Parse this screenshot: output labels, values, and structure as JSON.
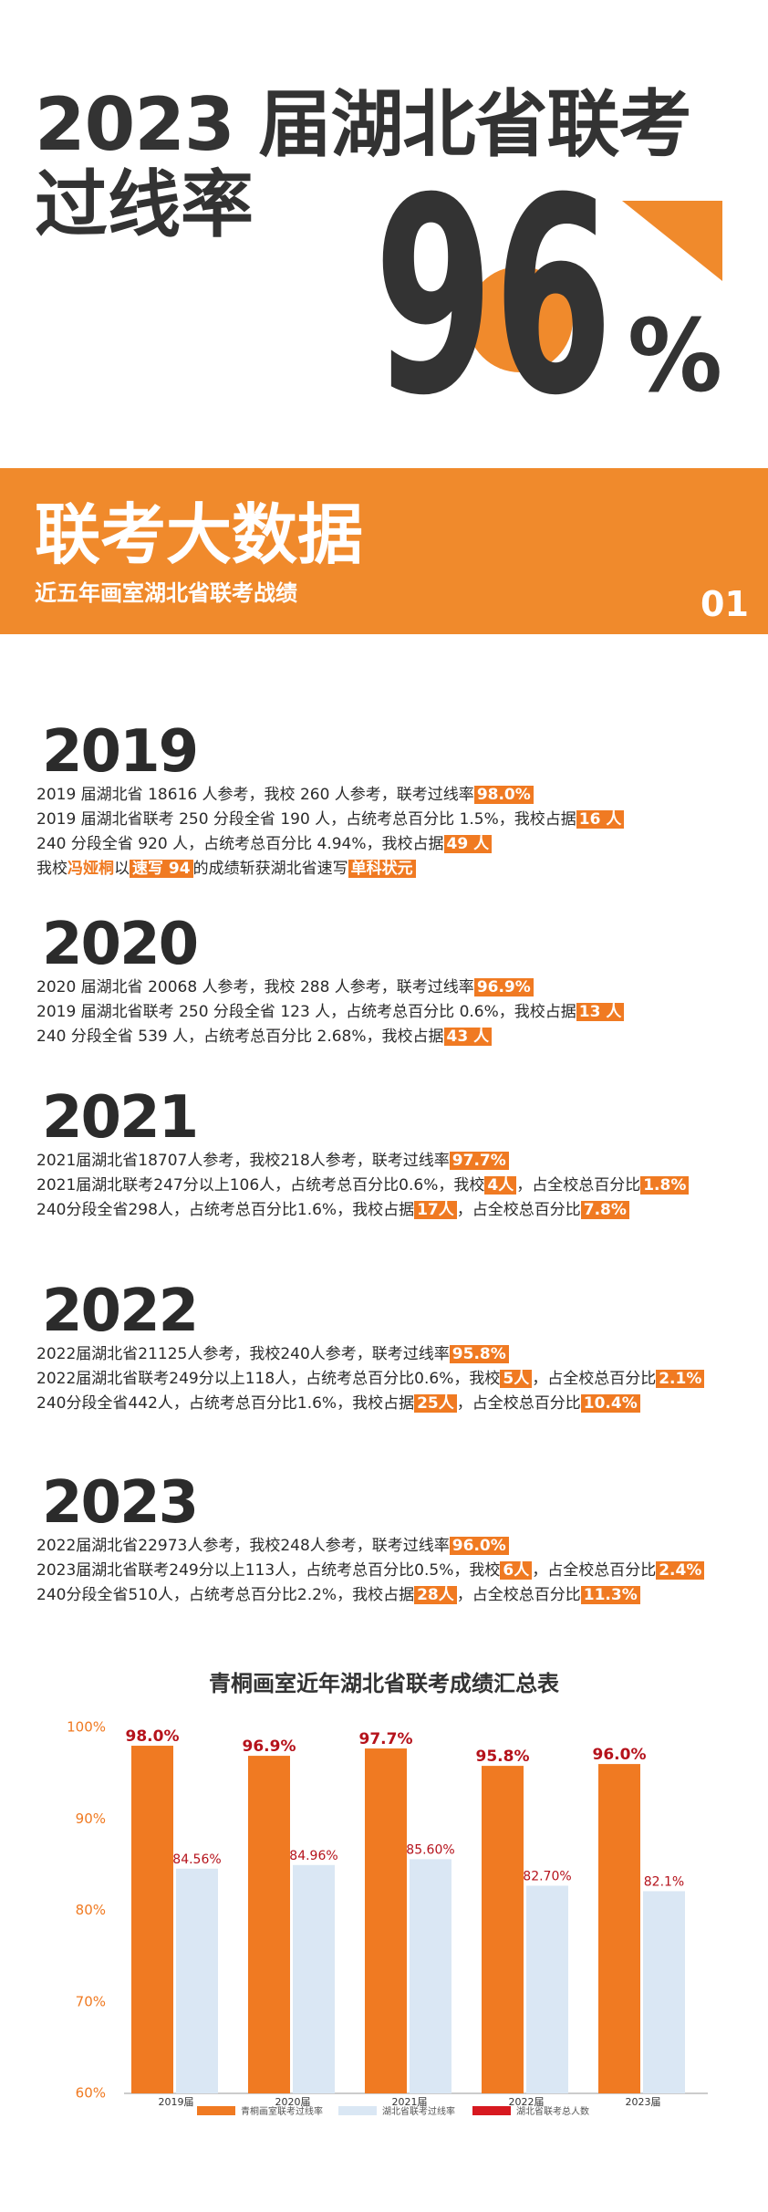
{
  "header": {
    "title": "2023 届湖北省联考",
    "subtitle": "过线率",
    "big_number": "96",
    "big_unit": "%"
  },
  "banner": {
    "title": "联考大数据",
    "subtitle": "近五年画室湖北省联考战绩",
    "number": "01"
  },
  "years": [
    {
      "year": "2019",
      "lines": [
        [
          {
            "text": "2019 届湖北省 18616 人参考，我校 260 人参考，联考过线率"
          },
          {
            "text": "98.0%",
            "style": "box"
          }
        ],
        [
          {
            "text": "2019 届湖北省联考 250 分段全省 190 人，占统考总百分比 1.5%，我校占据"
          },
          {
            "text": "16 人",
            "style": "box"
          }
        ],
        [
          {
            "text": "240 分段全省 920 人，占统考总百分比 4.94%，我校占据"
          },
          {
            "text": "49 人",
            "style": "box"
          }
        ],
        [
          {
            "text": "我校"
          },
          {
            "text": "冯娅桐",
            "style": "orange"
          },
          {
            "text": "以"
          },
          {
            "text": "速写 94",
            "style": "box"
          },
          {
            "text": "的成绩斩获湖北省速写"
          },
          {
            "text": "单科状元",
            "style": "box"
          }
        ]
      ]
    },
    {
      "year": "2020",
      "lines": [
        [
          {
            "text": "2020 届湖北省 20068 人参考，我校 288 人参考，联考过线率"
          },
          {
            "text": "96.9%",
            "style": "box"
          }
        ],
        [
          {
            "text": "2019 届湖北省联考 250 分段全省 123 人，占统考总百分比 0.6%，我校占据"
          },
          {
            "text": "13 人",
            "style": "box"
          }
        ],
        [
          {
            "text": "240 分段全省 539 人，占统考总百分比 2.68%，我校占据"
          },
          {
            "text": "43 人",
            "style": "box"
          }
        ]
      ]
    },
    {
      "year": "2021",
      "lines": [
        [
          {
            "text": "2021届湖北省18707人参考，我校218人参考，联考过线率"
          },
          {
            "text": "97.7%",
            "style": "box"
          }
        ],
        [
          {
            "text": "2021届湖北联考247分以上106人，占统考总百分比0.6%，我校"
          },
          {
            "text": "4人",
            "style": "box"
          },
          {
            "text": "，占全校总百分比"
          },
          {
            "text": "1.8%",
            "style": "box"
          }
        ],
        [
          {
            "text": "240分段全省298人，占统考总百分比1.6%，我校占据"
          },
          {
            "text": "17人",
            "style": "box"
          },
          {
            "text": "，占全校总百分比"
          },
          {
            "text": "7.8%",
            "style": "box"
          }
        ]
      ]
    },
    {
      "year": "2022",
      "lines": [
        [
          {
            "text": "2022届湖北省21125人参考，我校240人参考，联考过线率"
          },
          {
            "text": "95.8%",
            "style": "box"
          }
        ],
        [
          {
            "text": "2022届湖北省联考249分以上118人，占统考总百分比0.6%，我校"
          },
          {
            "text": "5人",
            "style": "box"
          },
          {
            "text": "，占全校总百分比"
          },
          {
            "text": "2.1%",
            "style": "box"
          }
        ],
        [
          {
            "text": "240分段全省442人，占统考总百分比1.6%，我校占据"
          },
          {
            "text": "25人",
            "style": "box"
          },
          {
            "text": "，占全校总百分比"
          },
          {
            "text": "10.4%",
            "style": "box"
          }
        ]
      ]
    },
    {
      "year": "2023",
      "lines": [
        [
          {
            "text": "2022届湖北省22973人参考，我校248人参考，联考过线率"
          },
          {
            "text": "96.0%",
            "style": "box"
          }
        ],
        [
          {
            "text": "2023届湖北省联考249分以上113人，占统考总百分比0.5%，我校"
          },
          {
            "text": "6人",
            "style": "box"
          },
          {
            "text": "，占全校总百分比"
          },
          {
            "text": "2.4%",
            "style": "box"
          }
        ],
        [
          {
            "text": "240分段全省510人，占统考总百分比2.2%，我校占据"
          },
          {
            "text": "28人",
            "style": "box"
          },
          {
            "text": "，占全校总百分比"
          },
          {
            "text": "11.3%",
            "style": "box"
          }
        ]
      ]
    }
  ],
  "chart_data": {
    "type": "bar",
    "title": "青桐画室近年湖北省联考成绩汇总表",
    "categories": [
      "2019届",
      "2020届",
      "2021届",
      "2022届",
      "2023届"
    ],
    "series": [
      {
        "name": "青桐画室联考过线率",
        "color": "#f07a22",
        "values": [
          98.0,
          96.9,
          97.7,
          95.8,
          96.0
        ],
        "value_labels": [
          "98.0%",
          "96.9%",
          "97.7%",
          "95.8%",
          "96.0%"
        ]
      },
      {
        "name": "湖北省联考过线率",
        "color": "#dae7f4",
        "values": [
          84.56,
          84.96,
          85.6,
          82.7,
          82.1
        ],
        "value_labels": [
          "84.56%",
          "84.96%",
          "85.60%",
          "82.70%",
          "82.1%"
        ]
      },
      {
        "name": "湖北省联考总人数",
        "color": "#d71920",
        "values": [
          null,
          null,
          null,
          null,
          null
        ]
      }
    ],
    "ylim": [
      60,
      100
    ],
    "yticks": [
      {
        "value": 60,
        "label": "60%"
      },
      {
        "value": 70,
        "label": "70%"
      },
      {
        "value": 80,
        "label": "80%"
      },
      {
        "value": 90,
        "label": "90%"
      },
      {
        "value": 100,
        "label": "100%"
      }
    ],
    "legend": "bottom"
  }
}
